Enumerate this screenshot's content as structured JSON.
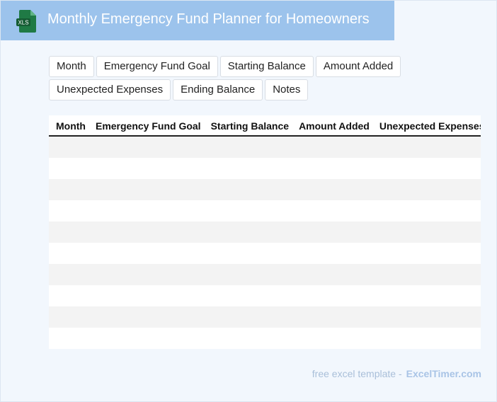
{
  "header": {
    "icon_label": "XLS",
    "title": "Monthly Emergency Fund Planner for Homeowners"
  },
  "tags": [
    "Month",
    "Emergency Fund Goal",
    "Starting Balance",
    "Amount Added",
    "Unexpected Expenses",
    "Ending Balance",
    "Notes"
  ],
  "table": {
    "columns": [
      "Month",
      "Emergency Fund Goal",
      "Starting Balance",
      "Amount Added",
      "Unexpected Expenses"
    ]
  },
  "footer": {
    "text": "free excel template -",
    "link": "ExcelTimer.com"
  }
}
